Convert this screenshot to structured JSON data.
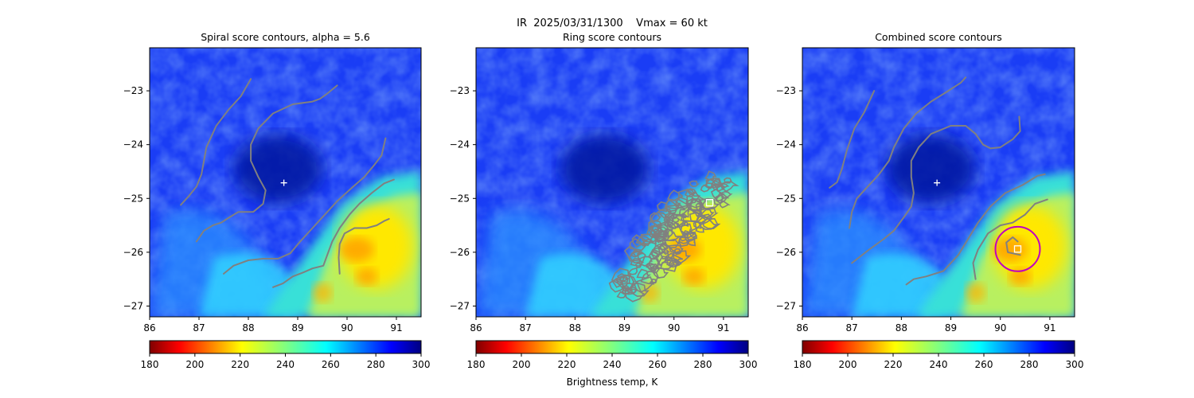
{
  "figure": {
    "suptitle": "IR  2025/03/31/1300    Vmax = 60 kt",
    "colorbar_label": "Brightness temp, K"
  },
  "colors": {
    "contour": "#808080",
    "marker": "#ffffff",
    "ring": "#c000c0",
    "colormap": "jet_r"
  },
  "chart_data": [
    {
      "type": "heatmap",
      "title": "Spiral score contours, alpha =  5.6",
      "xlim": [
        86.0,
        91.5
      ],
      "ylim": [
        -27.2,
        -22.2
      ],
      "xticks": [
        "86",
        "87",
        "88",
        "89",
        "90",
        "91"
      ],
      "yticks": [
        "−23",
        "−24",
        "−25",
        "−26",
        "−27"
      ],
      "colorbar": {
        "range": [
          180,
          300
        ],
        "ticks": [
          "180",
          "200",
          "220",
          "240",
          "260",
          "280",
          "300"
        ]
      },
      "center_marker": {
        "shape": "plus",
        "x": 88.72,
        "y": -24.71
      },
      "contours": [
        [
          [
            86.63,
            -25.12
          ],
          [
            86.8,
            -24.95
          ],
          [
            86.95,
            -24.78
          ],
          [
            87.05,
            -24.55
          ],
          [
            87.1,
            -24.3
          ],
          [
            87.15,
            -24.05
          ],
          [
            87.35,
            -23.65
          ],
          [
            87.6,
            -23.35
          ],
          [
            87.85,
            -23.1
          ],
          [
            88.05,
            -22.78
          ]
        ],
        [
          [
            86.95,
            -25.8
          ],
          [
            87.1,
            -25.6
          ],
          [
            87.28,
            -25.5
          ],
          [
            87.45,
            -25.45
          ],
          [
            87.62,
            -25.35
          ],
          [
            87.8,
            -25.25
          ],
          [
            88.1,
            -25.25
          ],
          [
            88.3,
            -25.1
          ],
          [
            88.35,
            -24.85
          ],
          [
            88.2,
            -24.6
          ],
          [
            88.05,
            -24.3
          ],
          [
            88.05,
            -24.0
          ],
          [
            88.2,
            -23.7
          ],
          [
            88.5,
            -23.42
          ],
          [
            88.9,
            -23.25
          ],
          [
            89.3,
            -23.2
          ],
          [
            89.45,
            -23.15
          ],
          [
            89.6,
            -23.05
          ],
          [
            89.8,
            -22.9
          ]
        ],
        [
          [
            87.5,
            -26.4
          ],
          [
            87.7,
            -26.25
          ],
          [
            88.0,
            -26.15
          ],
          [
            88.3,
            -26.12
          ],
          [
            88.6,
            -26.12
          ],
          [
            88.85,
            -26.02
          ],
          [
            89.05,
            -25.8
          ],
          [
            89.3,
            -25.55
          ],
          [
            89.55,
            -25.3
          ],
          [
            89.8,
            -25.05
          ],
          [
            90.1,
            -24.8
          ],
          [
            90.35,
            -24.6
          ],
          [
            90.55,
            -24.38
          ],
          [
            90.7,
            -24.2
          ],
          [
            90.78,
            -23.88
          ]
        ],
        [
          [
            88.5,
            -26.65
          ],
          [
            88.7,
            -26.58
          ],
          [
            88.9,
            -26.45
          ],
          [
            89.1,
            -26.38
          ],
          [
            89.3,
            -26.3
          ],
          [
            89.52,
            -26.25
          ],
          [
            89.62,
            -26.0
          ],
          [
            89.7,
            -25.8
          ],
          [
            89.85,
            -25.55
          ],
          [
            90.05,
            -25.3
          ],
          [
            90.25,
            -25.1
          ],
          [
            90.5,
            -24.9
          ],
          [
            90.75,
            -24.72
          ],
          [
            90.95,
            -24.65
          ]
        ],
        [
          [
            89.85,
            -26.4
          ],
          [
            89.83,
            -26.1
          ],
          [
            89.85,
            -25.85
          ],
          [
            89.95,
            -25.65
          ],
          [
            90.15,
            -25.55
          ],
          [
            90.4,
            -25.55
          ],
          [
            90.6,
            -25.5
          ],
          [
            90.75,
            -25.42
          ],
          [
            90.85,
            -25.38
          ]
        ]
      ]
    },
    {
      "type": "heatmap",
      "title": "Ring score contours",
      "xlim": [
        86.0,
        91.5
      ],
      "ylim": [
        -27.2,
        -22.2
      ],
      "xticks": [
        "86",
        "87",
        "88",
        "89",
        "90",
        "91"
      ],
      "yticks": [
        "−23",
        "−24",
        "−25",
        "−26",
        "−27"
      ],
      "colorbar": {
        "range": [
          180,
          300
        ],
        "ticks": [
          "180",
          "200",
          "220",
          "240",
          "260",
          "280",
          "300"
        ]
      },
      "center_marker": {
        "shape": "square",
        "x": 90.72,
        "y": -25.08
      },
      "contour_region": [
        [
          88.7,
          -26.85
        ],
        [
          89.0,
          -26.3
        ],
        [
          89.3,
          -25.7
        ],
        [
          89.8,
          -25.1
        ],
        [
          90.3,
          -24.75
        ],
        [
          90.85,
          -24.55
        ],
        [
          91.15,
          -24.7
        ],
        [
          90.95,
          -25.25
        ],
        [
          90.6,
          -25.6
        ],
        [
          90.2,
          -26.05
        ],
        [
          89.75,
          -26.45
        ],
        [
          89.3,
          -26.75
        ],
        [
          88.95,
          -26.9
        ]
      ]
    },
    {
      "type": "heatmap",
      "title": "Combined score contours",
      "xlim": [
        86.0,
        91.5
      ],
      "ylim": [
        -27.2,
        -22.2
      ],
      "xticks": [
        "86",
        "87",
        "88",
        "89",
        "90",
        "91"
      ],
      "yticks": [
        "−23",
        "−24",
        "−25",
        "−26",
        "−27"
      ],
      "colorbar": {
        "range": [
          180,
          300
        ],
        "ticks": [
          "180",
          "200",
          "220",
          "240",
          "260",
          "280",
          "300"
        ]
      },
      "center_marker": {
        "shape": "plus",
        "x": 88.72,
        "y": -24.71
      },
      "best_marker": {
        "shape": "square",
        "x": 90.35,
        "y": -25.94
      },
      "ring": {
        "x": 90.35,
        "y": -25.94,
        "radius_deg": 0.45
      },
      "contours": [
        [
          [
            86.55,
            -24.8
          ],
          [
            86.7,
            -24.7
          ],
          [
            86.8,
            -24.45
          ],
          [
            86.9,
            -24.1
          ],
          [
            87.05,
            -23.7
          ],
          [
            87.25,
            -23.4
          ],
          [
            87.45,
            -23.0
          ]
        ],
        [
          [
            86.95,
            -25.55
          ],
          [
            87.0,
            -25.25
          ],
          [
            87.1,
            -25.0
          ],
          [
            87.3,
            -24.8
          ],
          [
            87.55,
            -24.55
          ],
          [
            87.75,
            -24.3
          ],
          [
            87.85,
            -24.05
          ],
          [
            88.05,
            -23.7
          ],
          [
            88.3,
            -23.42
          ],
          [
            88.6,
            -23.2
          ],
          [
            88.95,
            -23.0
          ],
          [
            89.2,
            -22.85
          ],
          [
            89.3,
            -22.75
          ]
        ],
        [
          [
            87.0,
            -26.2
          ],
          [
            87.35,
            -25.95
          ],
          [
            87.65,
            -25.75
          ],
          [
            87.85,
            -25.6
          ],
          [
            88.05,
            -25.35
          ],
          [
            88.2,
            -25.15
          ],
          [
            88.25,
            -24.9
          ],
          [
            88.2,
            -24.6
          ],
          [
            88.2,
            -24.3
          ],
          [
            88.35,
            -24.05
          ],
          [
            88.6,
            -23.8
          ],
          [
            89.0,
            -23.65
          ],
          [
            89.3,
            -23.65
          ],
          [
            89.5,
            -23.8
          ],
          [
            89.65,
            -24.0
          ],
          [
            89.8,
            -24.07
          ],
          [
            90.0,
            -24.05
          ],
          [
            90.25,
            -23.9
          ],
          [
            90.4,
            -23.75
          ],
          [
            90.38,
            -23.48
          ]
        ],
        [
          [
            88.1,
            -26.6
          ],
          [
            88.25,
            -26.5
          ],
          [
            88.5,
            -26.45
          ],
          [
            88.85,
            -26.35
          ],
          [
            89.15,
            -26.05
          ],
          [
            89.35,
            -25.75
          ],
          [
            89.55,
            -25.45
          ],
          [
            89.8,
            -25.15
          ],
          [
            90.1,
            -24.9
          ],
          [
            90.45,
            -24.75
          ],
          [
            90.75,
            -24.58
          ],
          [
            90.9,
            -24.55
          ]
        ],
        [
          [
            89.5,
            -26.5
          ],
          [
            89.45,
            -26.2
          ],
          [
            89.55,
            -25.95
          ],
          [
            89.75,
            -25.65
          ],
          [
            90.0,
            -25.5
          ],
          [
            90.25,
            -25.45
          ],
          [
            90.5,
            -25.3
          ],
          [
            90.7,
            -25.1
          ],
          [
            90.95,
            -25.02
          ]
        ],
        [
          [
            90.4,
            -26.05
          ],
          [
            90.15,
            -26.0
          ],
          [
            90.12,
            -25.82
          ],
          [
            90.25,
            -25.72
          ],
          [
            90.35,
            -25.8
          ]
        ]
      ]
    }
  ]
}
